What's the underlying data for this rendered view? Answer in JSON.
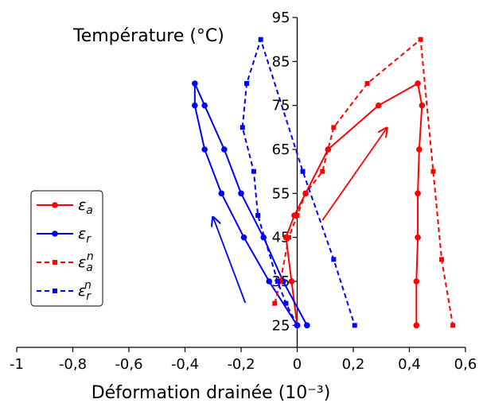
{
  "chart_data": {
    "type": "line",
    "xlabel": "Déformation drainée (10⁻³)",
    "ylabel": "Température (°C)",
    "xlim": [
      -1,
      0.6
    ],
    "ylim": [
      20,
      95
    ],
    "x_ticks": [
      -1,
      -0.8,
      -0.6,
      -0.4,
      -0.2,
      0,
      0.2,
      0.4,
      0.6
    ],
    "x_tick_labels": [
      "-1",
      "-0,8",
      "-0,6",
      "-0,4",
      "-0,2",
      "0",
      "0,2",
      "0,4",
      "0,6"
    ],
    "y_ticks": [
      25,
      35,
      45,
      55,
      65,
      75,
      85,
      95
    ],
    "y_tick_labels": [
      "25",
      "35",
      "45",
      "55",
      "65",
      "75",
      "85",
      "95"
    ],
    "grid": false,
    "legend_position": "center-left",
    "series": [
      {
        "name": "εa",
        "label_base": "ε",
        "label_sub": "a",
        "label_sup": "",
        "color": "#ff0000",
        "style": "solid",
        "marker": "circle",
        "points": [
          [
            0,
            25
          ],
          [
            -0.02,
            35
          ],
          [
            -0.04,
            45
          ],
          [
            -0.01,
            50
          ],
          [
            0.03,
            55
          ],
          [
            0.11,
            65
          ],
          [
            0.29,
            75
          ],
          [
            0.43,
            80
          ],
          [
            0.445,
            75
          ],
          [
            0.435,
            65
          ],
          [
            0.43,
            55
          ],
          [
            0.43,
            45
          ],
          [
            0.425,
            35
          ],
          [
            0.425,
            25
          ]
        ]
      },
      {
        "name": "εr",
        "label_base": "ε",
        "label_sub": "r",
        "label_sup": "",
        "color": "#0000ff",
        "style": "solid",
        "marker": "circle",
        "points": [
          [
            0,
            25
          ],
          [
            -0.1,
            35
          ],
          [
            -0.19,
            45
          ],
          [
            -0.27,
            55
          ],
          [
            -0.33,
            65
          ],
          [
            -0.365,
            75
          ],
          [
            -0.365,
            80
          ],
          [
            -0.33,
            75
          ],
          [
            -0.26,
            65
          ],
          [
            -0.2,
            55
          ],
          [
            -0.12,
            45
          ],
          [
            -0.05,
            35
          ],
          [
            0.035,
            25
          ]
        ]
      },
      {
        "name": "εan",
        "label_base": "ε",
        "label_sub": "a",
        "label_sup": "n",
        "color": "#ff0000",
        "style": "dashed",
        "marker": "square",
        "points": [
          [
            -0.08,
            30
          ],
          [
            -0.06,
            35
          ],
          [
            -0.03,
            45
          ],
          [
            0,
            50
          ],
          [
            0.03,
            55
          ],
          [
            0.09,
            60
          ],
          [
            0.13,
            70
          ],
          [
            0.25,
            80
          ],
          [
            0.44,
            90
          ],
          [
            0.485,
            60
          ],
          [
            0.515,
            40
          ],
          [
            0.555,
            25
          ]
        ]
      },
      {
        "name": "εrn",
        "label_base": "ε",
        "label_sub": "r",
        "label_sup": "n",
        "color": "#0000ff",
        "style": "dashed",
        "marker": "square",
        "points": [
          [
            0,
            25
          ],
          [
            -0.04,
            30
          ],
          [
            -0.07,
            35
          ],
          [
            -0.14,
            50
          ],
          [
            -0.155,
            60
          ],
          [
            -0.195,
            70
          ],
          [
            -0.18,
            80
          ],
          [
            -0.13,
            90
          ],
          [
            0.02,
            60
          ],
          [
            0.13,
            40
          ],
          [
            0.205,
            25
          ]
        ]
      }
    ],
    "arrows": [
      {
        "color": "#ff0000",
        "from": [
          0.09,
          48.9
        ],
        "to": [
          0.32,
          69.9
        ]
      },
      {
        "color": "#0000ff",
        "from": [
          -0.185,
          30.1
        ],
        "to": [
          -0.3,
          49.6
        ]
      }
    ]
  }
}
